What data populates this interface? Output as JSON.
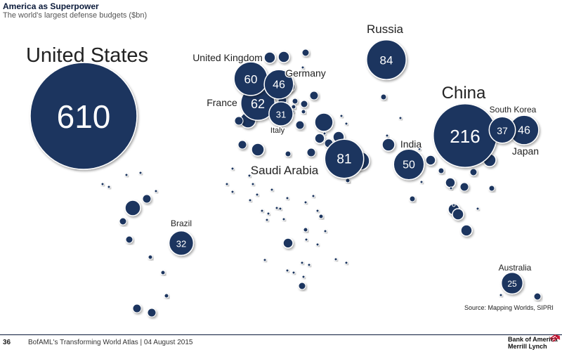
{
  "header": {
    "title": "America as Superpower",
    "subtitle": "The world's largest defense budgets ($bn)"
  },
  "source": "Source: Mapping Worlds, SIPRI",
  "footer": {
    "page_number": "36",
    "text": "BofAML's Transforming World Atlas | 04 August 2015",
    "logo_line1": "Bank of America",
    "logo_line2": "Merrill Lynch"
  },
  "colors": {
    "bubble": "#1c355e",
    "stroke": "#ffffff"
  },
  "chart_data": {
    "type": "bubble-map",
    "title": "The world's largest defense budgets ($bn)",
    "unit": "$bn",
    "series": [
      {
        "country": "United States",
        "value": 610
      },
      {
        "country": "China",
        "value": 216
      },
      {
        "country": "Russia",
        "value": 84
      },
      {
        "country": "Saudi Arabia",
        "value": 81
      },
      {
        "country": "France",
        "value": 62
      },
      {
        "country": "United Kingdom",
        "value": 60
      },
      {
        "country": "India",
        "value": 50
      },
      {
        "country": "Germany",
        "value": 46
      },
      {
        "country": "Japan",
        "value": 46
      },
      {
        "country": "South Korea",
        "value": 37
      },
      {
        "country": "Brazil",
        "value": 32
      },
      {
        "country": "Italy",
        "value": 31
      },
      {
        "country": "Australia",
        "value": 25
      }
    ]
  }
}
